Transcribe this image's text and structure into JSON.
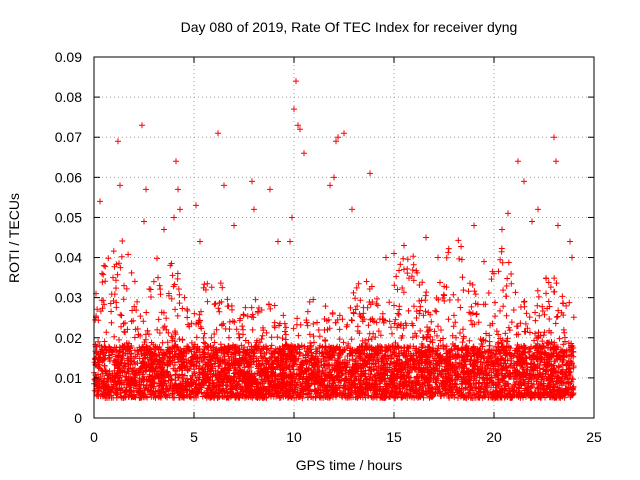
{
  "chart_data": {
    "type": "scatter",
    "title": "Day 080 of 2019, Rate Of TEC Index for receiver dyng",
    "xlabel": "GPS time / hours",
    "ylabel": "ROTI / TECUs",
    "xlim": [
      0,
      25
    ],
    "ylim": [
      0,
      0.09
    ],
    "x_ticks": [
      "0",
      "5",
      "10",
      "15",
      "20",
      "25"
    ],
    "y_ticks": [
      "0",
      "0.01",
      "0.02",
      "0.03",
      "0.04",
      "0.05",
      "0.06",
      "0.07",
      "0.08",
      "0.09"
    ],
    "grid": true,
    "marker": "+",
    "color": "#ff0000",
    "series": [
      {
        "name": "ROTI",
        "x": [
          0.1,
          0.3,
          0.4,
          0.5,
          1.2,
          1.3,
          1.5,
          2.4,
          2.5,
          2.6,
          3.2,
          3.5,
          4.0,
          4.1,
          4.2,
          4.3,
          5.1,
          5.3,
          6.2,
          6.5,
          7.0,
          7.9,
          8.0,
          8.8,
          9.2,
          9.8,
          9.9,
          10.0,
          10.1,
          10.2,
          10.3,
          10.5,
          11.8,
          12.0,
          12.1,
          12.2,
          12.5,
          12.9,
          13.8,
          14.6,
          15.0,
          15.5,
          16.6,
          17.2,
          19.0,
          19.5,
          20.0,
          20.4,
          20.7,
          21.2,
          21.5,
          21.9,
          22.2,
          23.0,
          23.1,
          23.2,
          23.8,
          23.9
        ],
        "y": [
          0.031,
          0.054,
          0.036,
          0.038,
          0.069,
          0.058,
          0.033,
          0.073,
          0.049,
          0.057,
          0.035,
          0.047,
          0.05,
          0.064,
          0.057,
          0.052,
          0.053,
          0.044,
          0.071,
          0.058,
          0.048,
          0.059,
          0.052,
          0.057,
          0.044,
          0.044,
          0.05,
          0.077,
          0.084,
          0.073,
          0.072,
          0.066,
          0.058,
          0.06,
          0.069,
          0.07,
          0.071,
          0.052,
          0.061,
          0.04,
          0.041,
          0.043,
          0.045,
          0.04,
          0.048,
          0.039,
          0.036,
          0.047,
          0.051,
          0.064,
          0.059,
          0.049,
          0.052,
          0.07,
          0.064,
          0.048,
          0.044,
          0.04
        ]
      }
    ],
    "background_band": {
      "description": "dense scatter of samples throughout the day",
      "baseline_min": 0.005,
      "baseline_max": 0.018,
      "peak_max": 0.045
    }
  }
}
